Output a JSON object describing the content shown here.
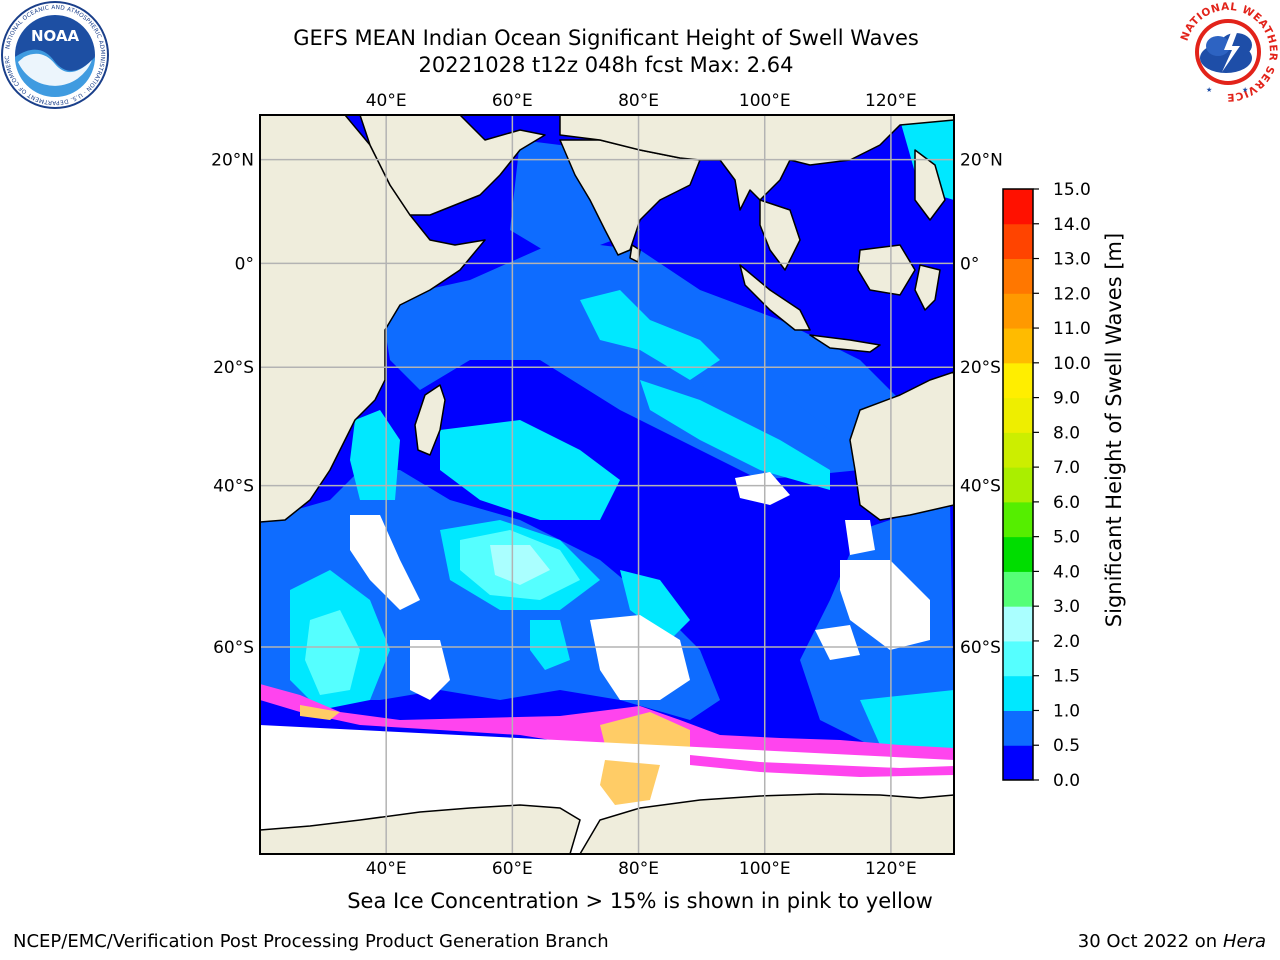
{
  "title": {
    "line1": "GEFS MEAN Indian Ocean Significant Height of Swell Waves",
    "line2": "20221028 t12z 048h fcst   Max: 2.64"
  },
  "map": {
    "region": "Indian Ocean",
    "lon_ticks": [
      "40°E",
      "60°E",
      "80°E",
      "100°E",
      "120°E"
    ],
    "lon_values": [
      40,
      60,
      80,
      100,
      120
    ],
    "lat_ticks": [
      "20°N",
      "0°",
      "20°S",
      "40°S",
      "60°S"
    ],
    "lat_values": [
      20,
      0,
      -20,
      -40,
      -60
    ],
    "lon_range": [
      20,
      130
    ],
    "lat_range": [
      -75,
      28
    ],
    "grid": true,
    "colors": {
      "land": "#efeddc",
      "ocean_0_0_5": "#0000ff",
      "ocean_0_5_1_0": "#0e6cff",
      "ocean_1_0_1_5": "#00e8ff",
      "ocean_1_5_2_0": "#55ffff",
      "ocean_2_0_3_0": "#aaffff",
      "no_data": "#ffffff",
      "sea_ice_low": "#ff44ee",
      "sea_ice_high": "#ffcc66"
    }
  },
  "colorbar": {
    "title": "Significant Height of Swell Waves [m]",
    "tick_labels": [
      "0.0",
      "0.5",
      "1.0",
      "1.5",
      "2.0",
      "3.0",
      "4.0",
      "5.0",
      "6.0",
      "7.0",
      "8.0",
      "9.0",
      "10.0",
      "11.0",
      "12.0",
      "13.0",
      "14.0",
      "15.0"
    ],
    "bins": [
      {
        "from": 0.0,
        "to": 0.5,
        "color": "#0000ff"
      },
      {
        "from": 0.5,
        "to": 1.0,
        "color": "#0e6cff"
      },
      {
        "from": 1.0,
        "to": 1.5,
        "color": "#00e8ff"
      },
      {
        "from": 1.5,
        "to": 2.0,
        "color": "#55ffff"
      },
      {
        "from": 2.0,
        "to": 3.0,
        "color": "#aaffff"
      },
      {
        "from": 3.0,
        "to": 4.0,
        "color": "#55ff77"
      },
      {
        "from": 4.0,
        "to": 5.0,
        "color": "#00dd00"
      },
      {
        "from": 5.0,
        "to": 6.0,
        "color": "#55ee00"
      },
      {
        "from": 6.0,
        "to": 7.0,
        "color": "#aaee00"
      },
      {
        "from": 7.0,
        "to": 8.0,
        "color": "#ccee00"
      },
      {
        "from": 8.0,
        "to": 9.0,
        "color": "#eeee00"
      },
      {
        "from": 9.0,
        "to": 10.0,
        "color": "#ffee00"
      },
      {
        "from": 10.0,
        "to": 11.0,
        "color": "#ffbb00"
      },
      {
        "from": 11.0,
        "to": 12.0,
        "color": "#ff9900"
      },
      {
        "from": 12.0,
        "to": 13.0,
        "color": "#ff7700"
      },
      {
        "from": 13.0,
        "to": 14.0,
        "color": "#ff4400"
      },
      {
        "from": 14.0,
        "to": 15.0,
        "color": "#ff1100"
      }
    ]
  },
  "caption": "Sea Ice Concentration > 15% is shown in pink to yellow",
  "footer": {
    "left": "NCEP/EMC/Verification Post Processing Product Generation Branch",
    "right_date": "30 Oct 2022 on ",
    "right_host": "Hera"
  },
  "logos": {
    "noaa_text": "NOAA",
    "noaa_ring": "NATIONAL OCEANIC AND ATMOSPHERIC ADMINISTRATION · U.S. DEPARTMENT OF COMMERCE",
    "nws_ring": "NATIONAL WEATHER SERVICE",
    "noaa_icon": "noaa-logo",
    "nws_icon": "nws-logo"
  }
}
